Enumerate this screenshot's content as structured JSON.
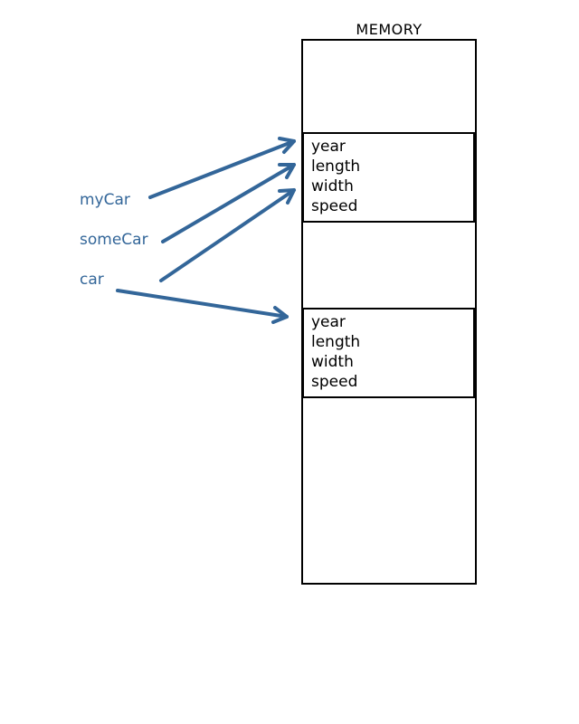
{
  "memory": {
    "title": "MEMORY"
  },
  "objects": [
    {
      "fields": [
        "year",
        "length",
        "width",
        "speed"
      ]
    },
    {
      "fields": [
        "year",
        "length",
        "width",
        "speed"
      ]
    }
  ],
  "variables": [
    {
      "name": "myCar",
      "points_to": "object-1"
    },
    {
      "name": "someCar",
      "points_to": "object-1"
    },
    {
      "name": "car",
      "points_to": "object-1"
    },
    {
      "name": "car",
      "points_to": "object-2"
    }
  ],
  "colors": {
    "arrow": "#336699",
    "variable_text": "#336699",
    "box_border": "#000000"
  }
}
